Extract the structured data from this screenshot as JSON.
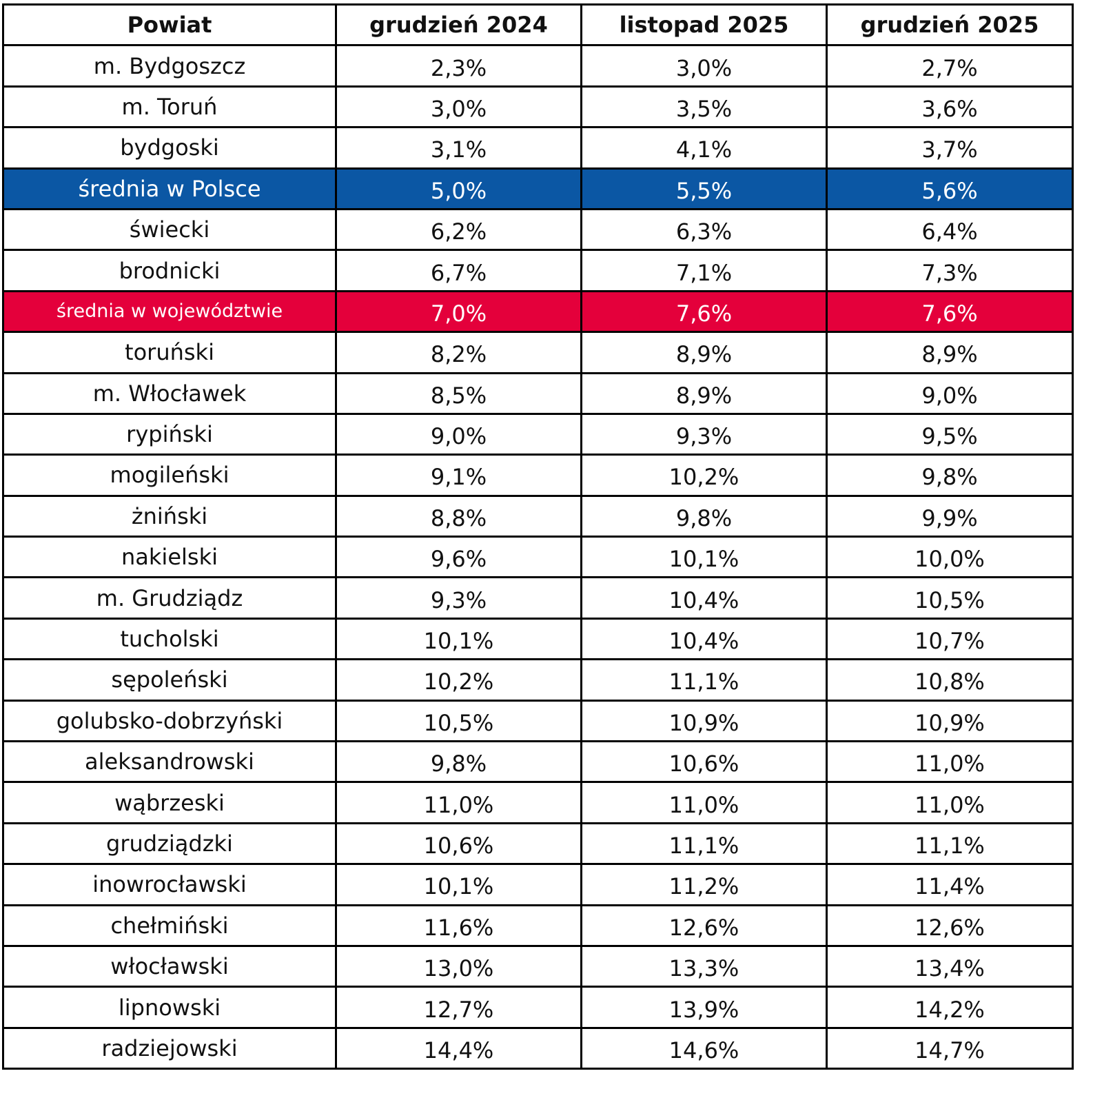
{
  "table": {
    "header": [
      "Powiat",
      "grudzień 2024",
      "listopad 2025",
      "grudzień 2025"
    ],
    "rows": [
      [
        "m. Bydgoszcz",
        "2,3%",
        "3,0%",
        "2,7%"
      ],
      [
        "m. Toruń",
        "3,0%",
        "3,5%",
        "3,6%"
      ],
      [
        "bydgoski",
        "3,1%",
        "4,1%",
        "3,7%"
      ],
      [
        "średnia w Polsce",
        "5,0%",
        "5,5%",
        "5,6%"
      ],
      [
        "świecki",
        "6,2%",
        "6,3%",
        "6,4%"
      ],
      [
        "brodnicki",
        "6,7%",
        "7,1%",
        "7,3%"
      ],
      [
        "średnia w województwie",
        "7,0%",
        "7,6%",
        "7,6%"
      ],
      [
        "toruński",
        "8,2%",
        "8,9%",
        "8,9%"
      ],
      [
        "m. Włocławek",
        "8,5%",
        "8,9%",
        "9,0%"
      ],
      [
        "rypiński",
        "9,0%",
        "9,3%",
        "9,5%"
      ],
      [
        "mogileński",
        "9,1%",
        "10,2%",
        "9,8%"
      ],
      [
        "żniński",
        "8,8%",
        "9,8%",
        "9,9%"
      ],
      [
        "nakielski",
        "9,6%",
        "10,1%",
        "10,0%"
      ],
      [
        "m. Grudziądz",
        "9,3%",
        "10,4%",
        "10,5%"
      ],
      [
        "tucholski",
        "10,1%",
        "10,4%",
        "10,7%"
      ],
      [
        "sępoleński",
        "10,2%",
        "11,1%",
        "10,8%"
      ],
      [
        "golubsko-dobrzyński",
        "10,5%",
        "10,9%",
        "10,9%"
      ],
      [
        "aleksandrowski",
        "9,8%",
        "10,6%",
        "11,0%"
      ],
      [
        "wąbrzeski",
        "11,0%",
        "11,0%",
        "11,0%"
      ],
      [
        "grudziądzki",
        "10,6%",
        "11,1%",
        "11,1%"
      ],
      [
        "inowrocławski",
        "10,1%",
        "11,2%",
        "11,4%"
      ],
      [
        "chełmiński",
        "11,6%",
        "12,6%",
        "12,6%"
      ],
      [
        "włocławski",
        "13,0%",
        "13,3%",
        "13,4%"
      ],
      [
        "lipnowski",
        "12,7%",
        "13,9%",
        "14,2%"
      ],
      [
        "radziejowski",
        "14,4%",
        "14,6%",
        "14,7%"
      ]
    ]
  }
}
